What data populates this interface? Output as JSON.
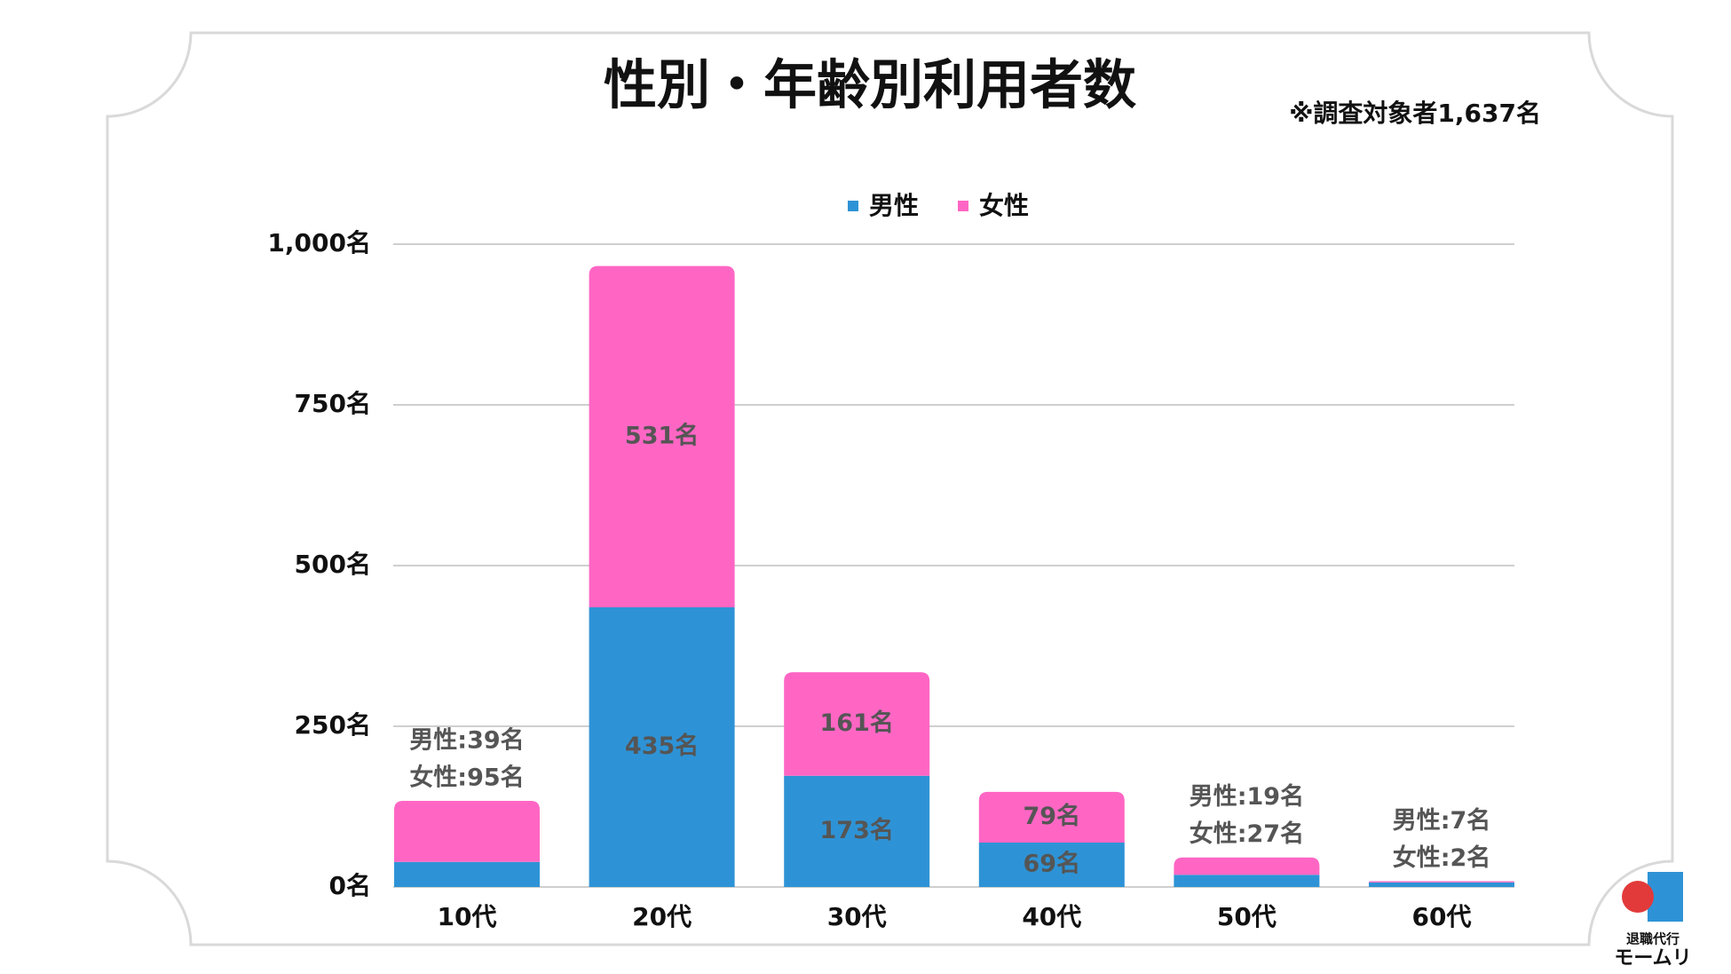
{
  "chart_data": {
    "type": "stacked_bar",
    "title": "性別・年齢別利用者数",
    "subtitle": "※調査対象者1,637名",
    "categories": [
      "10代",
      "20代",
      "30代",
      "40代",
      "50代",
      "60代"
    ],
    "series": [
      {
        "name": "男性",
        "color": "#2e93d6",
        "values": [
          39,
          435,
          173,
          69,
          19,
          7
        ],
        "value_labels": [
          "男性:39名",
          "435名",
          "173名",
          "69名",
          "男性:19名",
          "男性:7名"
        ]
      },
      {
        "name": "女性",
        "color": "#ff66c4",
        "values": [
          95,
          531,
          161,
          79,
          27,
          2
        ],
        "value_labels": [
          "女性:95名",
          "531名",
          "161名",
          "79名",
          "女性:27名",
          "女性:2名"
        ]
      }
    ],
    "ylim": [
      0,
      1000
    ],
    "yticks": [
      {
        "value": 0,
        "label": "0名"
      },
      {
        "value": 250,
        "label": "250名"
      },
      {
        "value": 500,
        "label": "500名"
      },
      {
        "value": 750,
        "label": "750名"
      },
      {
        "value": 1000,
        "label": "1,000名"
      }
    ],
    "grid": true,
    "legend": "top"
  },
  "logo": {
    "line1": "退職代行",
    "line2": "モームリ"
  }
}
